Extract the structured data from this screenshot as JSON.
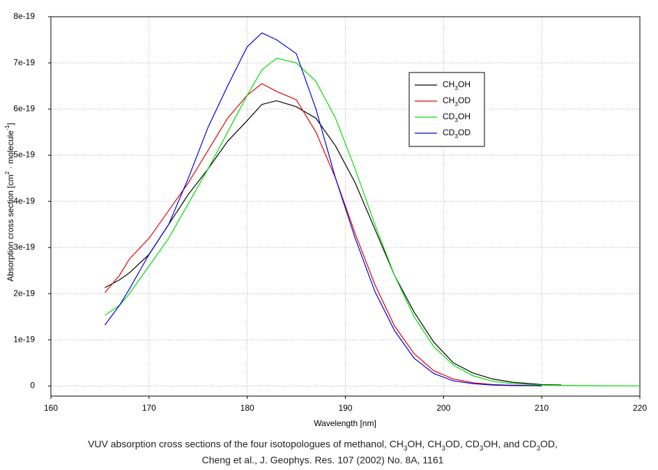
{
  "chart_data": {
    "type": "line",
    "ylabel": "Absorption cross section [cm2 · molecule-1]",
    "xlabel": "Wavelength [nm]",
    "caption": [
      "VUV absorption cross sections of the four isotopologues of methanol, CH3OH, CH3OD, CD3OH, and CD3OD,",
      "Cheng et al., J. Geophys. Res. 107 (2002) No. 8A, 1161"
    ],
    "x": [
      165.5,
      167,
      168,
      170,
      172,
      174,
      176,
      178,
      180,
      181.5,
      183,
      185,
      187,
      189,
      191,
      193,
      195,
      197,
      199,
      201,
      203,
      205,
      207,
      210,
      212,
      215,
      220
    ],
    "series": [
      {
        "name": "CH3OH",
        "color": "#000000",
        "values": [
          2.13e-19,
          2.3e-19,
          2.45e-19,
          2.85e-19,
          3.5e-19,
          4.15e-19,
          4.7e-19,
          5.3e-19,
          5.75e-19,
          6.1e-19,
          6.18e-19,
          6.05e-19,
          5.8e-19,
          5.2e-19,
          4.4e-19,
          3.4e-19,
          2.4e-19,
          1.6e-19,
          9.5e-20,
          5e-20,
          2.8e-20,
          1.5e-20,
          8e-21,
          3e-21,
          2e-21,
          null,
          null
        ]
      },
      {
        "name": "CH3OD",
        "color": "#e00000",
        "values": [
          2.02e-19,
          2.4e-19,
          2.75e-19,
          3.2e-19,
          3.8e-19,
          4.4e-19,
          5.1e-19,
          5.8e-19,
          6.3e-19,
          6.55e-19,
          6.38e-19,
          6.2e-19,
          5.5e-19,
          4.5e-19,
          3.3e-19,
          2.2e-19,
          1.3e-19,
          7e-20,
          3.3e-20,
          1.5e-20,
          7e-21,
          3e-21,
          1.5e-21,
          5e-22,
          null,
          null,
          null
        ]
      },
      {
        "name": "CD3OH",
        "color": "#00dd00",
        "values": [
          1.53e-19,
          1.75e-19,
          2e-19,
          2.6e-19,
          3.2e-19,
          3.95e-19,
          4.7e-19,
          5.5e-19,
          6.3e-19,
          6.85e-19,
          7.1e-19,
          7e-19,
          6.6e-19,
          5.8e-19,
          4.7e-19,
          3.5e-19,
          2.4e-19,
          1.5e-19,
          8.5e-20,
          4.5e-20,
          2.2e-20,
          1e-20,
          5e-21,
          2e-21,
          1e-21,
          5e-22,
          0
        ]
      },
      {
        "name": "CD3OD",
        "color": "#0000dd",
        "values": [
          1.32e-19,
          1.75e-19,
          2.1e-19,
          2.85e-19,
          3.5e-19,
          4.5e-19,
          5.6e-19,
          6.5e-19,
          7.35e-19,
          7.65e-19,
          7.5e-19,
          7.2e-19,
          6e-19,
          4.5e-19,
          3.2e-19,
          2.05e-19,
          1.2e-19,
          6e-20,
          2.7e-20,
          1.1e-20,
          5e-21,
          2e-21,
          8e-22,
          2e-22,
          null,
          null,
          null
        ]
      }
    ],
    "xlim": [
      160,
      220
    ],
    "xticks": [
      160,
      170,
      180,
      190,
      200,
      210,
      220
    ],
    "ylim": [
      -2.2e-20,
      8e-19
    ],
    "yticks": [
      0,
      1e-19,
      2e-19,
      3e-19,
      4e-19,
      5e-19,
      6e-19,
      7e-19,
      8e-19
    ],
    "grid": true
  }
}
